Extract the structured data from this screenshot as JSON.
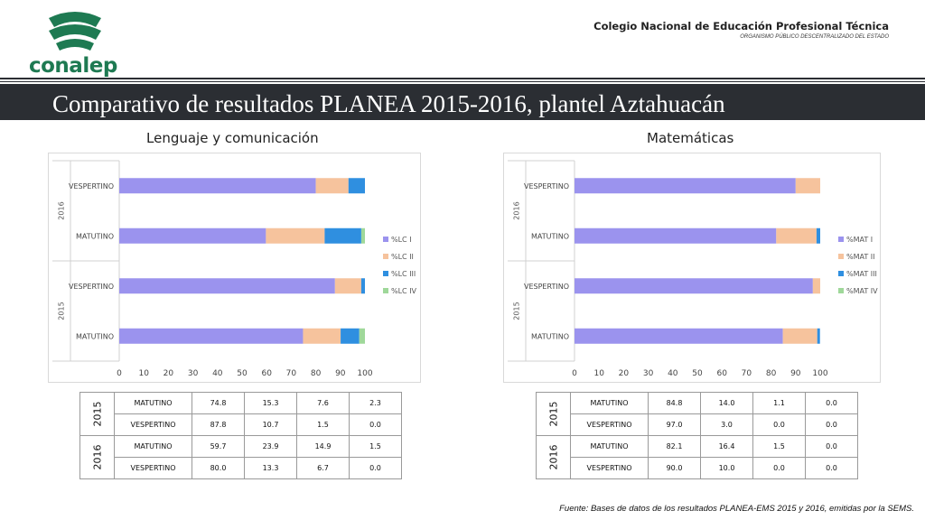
{
  "header": {
    "logo_text": "conalep",
    "institution": "Colegio Nacional de Educación Profesional Técnica",
    "institution_sub": "ORGANISMO PÚBLICO DESCENTRALIZADO DEL ESTADO"
  },
  "title": "Comparativo de resultados PLANEA 2015-2016, plantel Aztahuacán",
  "colors": {
    "s1": "#9b93ee",
    "s2": "#f6c39d",
    "s3": "#2f8fe0",
    "s4": "#9fd89a",
    "title_bar": "#2b2e33",
    "logo": "#1e7a52"
  },
  "panels": {
    "lenguaje": {
      "title": "Lenguaje y comunicación",
      "table": [
        {
          "year": "2015",
          "rows": [
            {
              "shift": "MATUTINO",
              "values": [
                "74.8",
                "15.3",
                "7.6",
                "2.3"
              ]
            },
            {
              "shift": "VESPERTINO",
              "values": [
                "87.8",
                "10.7",
                "1.5",
                "0.0"
              ]
            }
          ]
        },
        {
          "year": "2016",
          "rows": [
            {
              "shift": "MATUTINO",
              "values": [
                "59.7",
                "23.9",
                "14.9",
                "1.5"
              ]
            },
            {
              "shift": "VESPERTINO",
              "values": [
                "80.0",
                "13.3",
                "6.7",
                "0.0"
              ]
            }
          ]
        }
      ]
    },
    "matematicas": {
      "title": "Matemáticas",
      "table": [
        {
          "year": "2015",
          "rows": [
            {
              "shift": "MATUTINO",
              "values": [
                "84.8",
                "14.0",
                "1.1",
                "0.0"
              ]
            },
            {
              "shift": "VESPERTINO",
              "values": [
                "97.0",
                "3.0",
                "0.0",
                "0.0"
              ]
            }
          ]
        },
        {
          "year": "2016",
          "rows": [
            {
              "shift": "MATUTINO",
              "values": [
                "82.1",
                "16.4",
                "1.5",
                "0.0"
              ]
            },
            {
              "shift": "VESPERTINO",
              "values": [
                "90.0",
                "10.0",
                "0.0",
                "0.0"
              ]
            }
          ]
        }
      ]
    }
  },
  "chart_data": [
    {
      "type": "bar",
      "orientation": "horizontal",
      "stacked": true,
      "title": "Lenguaje y comunicación",
      "categories": [
        {
          "group": "2016",
          "label": "VESPERTINO"
        },
        {
          "group": "2016",
          "label": "MATUTINO"
        },
        {
          "group": "2015",
          "label": "VESPERTINO"
        },
        {
          "group": "2015",
          "label": "MATUTINO"
        }
      ],
      "series": [
        {
          "name": "%LC I",
          "values": [
            80.0,
            59.7,
            87.8,
            74.8
          ]
        },
        {
          "name": "%LC II",
          "values": [
            13.3,
            23.9,
            10.7,
            15.3
          ]
        },
        {
          "name": "%LC III",
          "values": [
            6.7,
            14.9,
            1.5,
            7.6
          ]
        },
        {
          "name": "%LC IV",
          "values": [
            0.0,
            1.5,
            0.0,
            2.3
          ]
        }
      ],
      "xlim": [
        0,
        100
      ],
      "xticks": [
        0,
        10,
        20,
        30,
        40,
        50,
        60,
        70,
        80,
        90,
        100
      ],
      "legend": "right",
      "grid": false
    },
    {
      "type": "bar",
      "orientation": "horizontal",
      "stacked": true,
      "title": "Matemáticas",
      "categories": [
        {
          "group": "2016",
          "label": "VESPERTINO"
        },
        {
          "group": "2016",
          "label": "MATUTINO"
        },
        {
          "group": "2015",
          "label": "VESPERTINO"
        },
        {
          "group": "2015",
          "label": "MATUTINO"
        }
      ],
      "series": [
        {
          "name": "%MAT I",
          "values": [
            90.0,
            82.1,
            97.0,
            84.8
          ]
        },
        {
          "name": "%MAT II",
          "values": [
            10.0,
            16.4,
            3.0,
            14.0
          ]
        },
        {
          "name": "%MAT III",
          "values": [
            0.0,
            1.5,
            0.0,
            1.1
          ]
        },
        {
          "name": "%MAT IV",
          "values": [
            0.0,
            0.0,
            0.0,
            0.0
          ]
        }
      ],
      "xlim": [
        0,
        100
      ],
      "xticks": [
        0,
        10,
        20,
        30,
        40,
        50,
        60,
        70,
        80,
        90,
        100
      ],
      "legend": "right",
      "grid": false
    }
  ],
  "source": "Fuente: Bases de datos de los resultados PLANEA-EMS 2015 y 2016, emitidas por la SEMS."
}
